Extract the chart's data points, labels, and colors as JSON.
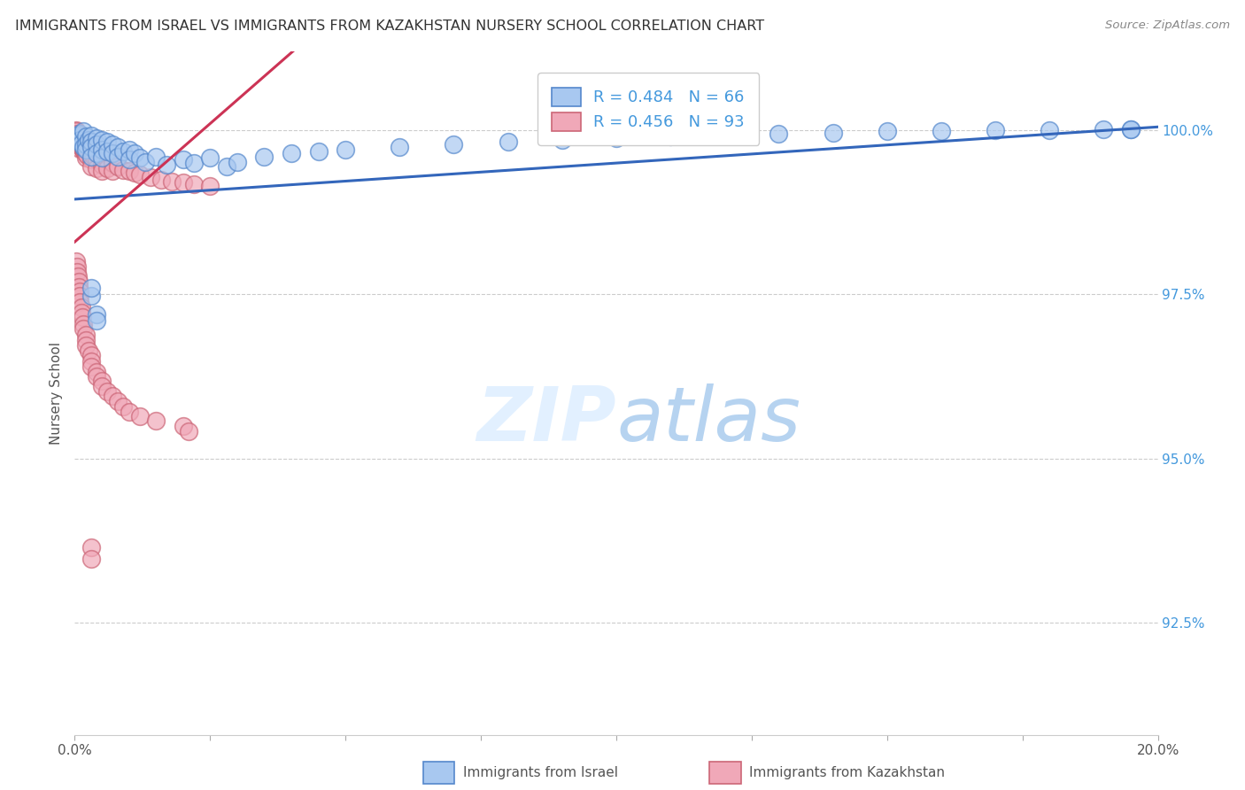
{
  "title": "IMMIGRANTS FROM ISRAEL VS IMMIGRANTS FROM KAZAKHSTAN NURSERY SCHOOL CORRELATION CHART",
  "source": "Source: ZipAtlas.com",
  "ylabel": "Nursery School",
  "legend_label1": "Immigrants from Israel",
  "legend_label2": "Immigrants from Kazakhstan",
  "R1": 0.484,
  "N1": 66,
  "R2": 0.456,
  "N2": 93,
  "color_israel": "#a8c8f0",
  "color_israel_edge": "#5588cc",
  "color_israel_line": "#3366bb",
  "color_kazakh": "#f0a8b8",
  "color_kazakh_edge": "#cc6677",
  "color_kazakh_line": "#cc3355",
  "background_color": "#ffffff",
  "grid_color": "#cccccc",
  "title_color": "#333333",
  "right_axis_color": "#4499dd",
  "ylabel_right_labels": [
    "100.0%",
    "97.5%",
    "95.0%",
    "92.5%"
  ],
  "ylabel_right_values": [
    1.0,
    0.975,
    0.95,
    0.925
  ],
  "xlim": [
    0.0,
    0.2
  ],
  "ylim": [
    0.908,
    1.012
  ],
  "israel_x": [
    0.0003,
    0.0005,
    0.0006,
    0.0008,
    0.001,
    0.001,
    0.0012,
    0.0015,
    0.0015,
    0.002,
    0.002,
    0.002,
    0.0025,
    0.003,
    0.003,
    0.003,
    0.003,
    0.004,
    0.004,
    0.004,
    0.005,
    0.005,
    0.005,
    0.006,
    0.006,
    0.007,
    0.007,
    0.008,
    0.008,
    0.009,
    0.01,
    0.01,
    0.011,
    0.012,
    0.013,
    0.015,
    0.017,
    0.02,
    0.022,
    0.025,
    0.028,
    0.03,
    0.035,
    0.04,
    0.045,
    0.05,
    0.06,
    0.07,
    0.08,
    0.09,
    0.1,
    0.11,
    0.12,
    0.13,
    0.14,
    0.15,
    0.16,
    0.17,
    0.18,
    0.19,
    0.195,
    0.195,
    0.003,
    0.003,
    0.004,
    0.004
  ],
  "israel_y": [
    0.9985,
    0.999,
    0.9988,
    0.9992,
    0.9995,
    0.9985,
    0.998,
    0.9998,
    0.9975,
    0.999,
    0.9978,
    0.997,
    0.9985,
    0.9992,
    0.9982,
    0.9975,
    0.996,
    0.9988,
    0.9978,
    0.9965,
    0.9985,
    0.997,
    0.9958,
    0.9982,
    0.9968,
    0.9978,
    0.9965,
    0.9975,
    0.996,
    0.9968,
    0.997,
    0.9955,
    0.9965,
    0.9958,
    0.9952,
    0.996,
    0.9948,
    0.9955,
    0.995,
    0.9958,
    0.9945,
    0.9952,
    0.996,
    0.9965,
    0.9968,
    0.997,
    0.9975,
    0.9978,
    0.9982,
    0.9985,
    0.9988,
    0.999,
    0.9992,
    0.9995,
    0.9996,
    0.9998,
    0.9999,
    1.0,
    1.0,
    1.0001,
    1.0002,
    1.0002,
    0.9748,
    0.976,
    0.972,
    0.971
  ],
  "kazakh_x": [
    0.0002,
    0.0003,
    0.0004,
    0.0005,
    0.0005,
    0.0006,
    0.0007,
    0.0008,
    0.0008,
    0.0009,
    0.001,
    0.001,
    0.001,
    0.001,
    0.0012,
    0.0012,
    0.0013,
    0.0014,
    0.0015,
    0.0015,
    0.0016,
    0.0017,
    0.0018,
    0.002,
    0.002,
    0.002,
    0.002,
    0.0022,
    0.0023,
    0.0025,
    0.0025,
    0.003,
    0.003,
    0.003,
    0.003,
    0.0035,
    0.004,
    0.004,
    0.004,
    0.005,
    0.005,
    0.005,
    0.006,
    0.006,
    0.007,
    0.007,
    0.008,
    0.009,
    0.01,
    0.011,
    0.012,
    0.014,
    0.016,
    0.018,
    0.02,
    0.022,
    0.025,
    0.0003,
    0.0004,
    0.0005,
    0.0006,
    0.0007,
    0.0008,
    0.0009,
    0.001,
    0.001,
    0.0012,
    0.0013,
    0.0014,
    0.0015,
    0.0015,
    0.002,
    0.002,
    0.002,
    0.0025,
    0.003,
    0.003,
    0.003,
    0.004,
    0.004,
    0.005,
    0.005,
    0.006,
    0.007,
    0.008,
    0.009,
    0.01,
    0.012,
    0.015,
    0.02,
    0.021,
    0.003,
    0.003
  ],
  "kazakh_y": [
    1.0,
    0.9998,
    0.9995,
    0.9992,
    0.9988,
    0.999,
    0.9985,
    0.9988,
    0.998,
    0.9982,
    0.999,
    0.9985,
    0.9978,
    0.9972,
    0.9982,
    0.9975,
    0.9978,
    0.9972,
    0.998,
    0.997,
    0.9975,
    0.9968,
    0.9972,
    0.9985,
    0.9975,
    0.9965,
    0.9958,
    0.9975,
    0.9962,
    0.9978,
    0.9968,
    0.9975,
    0.9965,
    0.9955,
    0.9945,
    0.996,
    0.9968,
    0.9955,
    0.9942,
    0.996,
    0.9948,
    0.9938,
    0.9955,
    0.9942,
    0.995,
    0.9938,
    0.9945,
    0.994,
    0.9938,
    0.9935,
    0.9932,
    0.9928,
    0.9925,
    0.9922,
    0.992,
    0.9918,
    0.9915,
    0.98,
    0.9792,
    0.9785,
    0.9778,
    0.977,
    0.9762,
    0.9755,
    0.9748,
    0.9738,
    0.973,
    0.9722,
    0.9715,
    0.9705,
    0.9698,
    0.9688,
    0.968,
    0.9672,
    0.9665,
    0.9658,
    0.9648,
    0.964,
    0.9632,
    0.9625,
    0.9618,
    0.961,
    0.9602,
    0.9595,
    0.9588,
    0.958,
    0.9572,
    0.9565,
    0.9558,
    0.955,
    0.9542,
    0.9365,
    0.9348
  ]
}
